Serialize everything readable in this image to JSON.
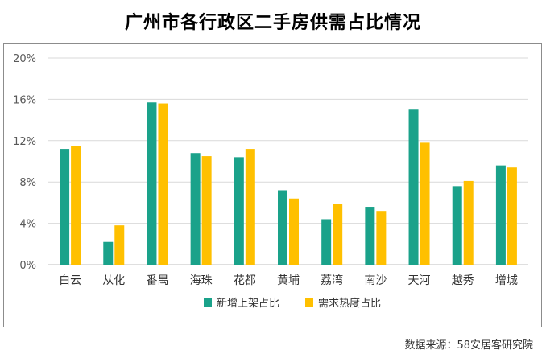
{
  "colors": {
    "series1": "#1AA28A",
    "series2": "#FFC000",
    "grid": "#d9d9d9",
    "axis": "#bfbfbf",
    "tick_text": "#595959"
  },
  "chart_data": {
    "type": "bar",
    "title": "广州市各行政区二手房供需占比情况",
    "xlabel": "",
    "ylabel": "",
    "categories": [
      "白云",
      "从化",
      "番禺",
      "海珠",
      "花都",
      "黄埔",
      "荔湾",
      "南沙",
      "天河",
      "越秀",
      "增城"
    ],
    "series": [
      {
        "name": "新增上架占比",
        "values": [
          11.2,
          2.2,
          15.7,
          10.8,
          10.4,
          7.2,
          4.4,
          5.6,
          15.0,
          7.6,
          9.6
        ]
      },
      {
        "name": "需求热度占比",
        "values": [
          11.5,
          3.8,
          15.6,
          10.5,
          11.2,
          6.4,
          5.9,
          5.2,
          11.8,
          8.1,
          9.4
        ]
      }
    ],
    "ylim": [
      0,
      20
    ],
    "yticks": [
      "0%",
      "4%",
      "8%",
      "12%",
      "16%",
      "20%"
    ],
    "ytick_values": [
      0,
      4,
      8,
      12,
      16,
      20
    ],
    "grid": true,
    "legend": "bottom-center"
  },
  "source": "数据来源：58安居客研究院"
}
